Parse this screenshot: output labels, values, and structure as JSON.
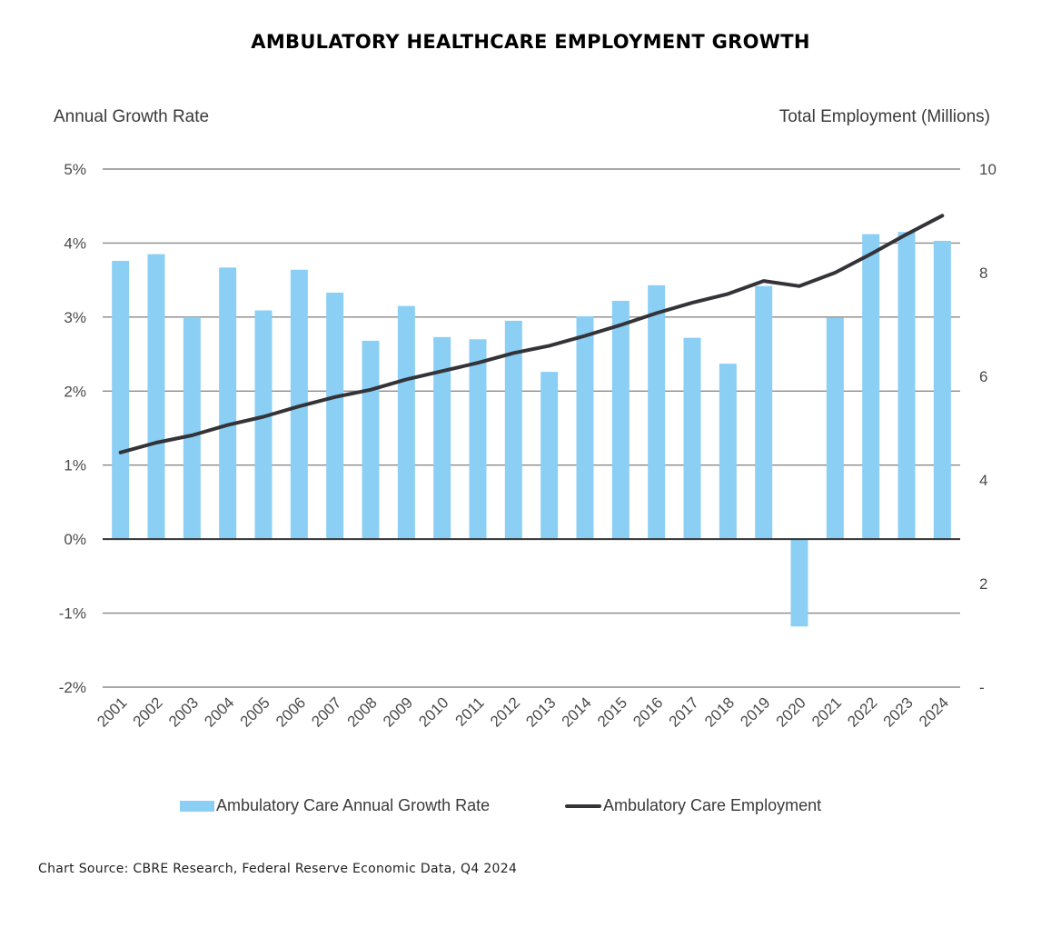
{
  "chart_data": {
    "type": "bar+line",
    "title": "AMBULATORY HEALTHCARE EMPLOYMENT GROWTH",
    "ylabel_left": "Annual Growth Rate",
    "ylabel_right": "Total Employment (Millions)",
    "ylim_left": [
      -2,
      5
    ],
    "ylim_right": [
      0,
      10
    ],
    "left_ticks": [
      "5%",
      "4%",
      "3%",
      "2%",
      "1%",
      "0%",
      "-1%",
      "-2%"
    ],
    "left_tick_values": [
      5,
      4,
      3,
      2,
      1,
      0,
      -1,
      -2
    ],
    "right_ticks": [
      "10",
      "8",
      "6",
      "4",
      "2",
      "-"
    ],
    "right_tick_values": [
      10,
      8,
      6,
      4,
      2,
      0
    ],
    "categories": [
      "2001",
      "2002",
      "2003",
      "2004",
      "2005",
      "2006",
      "2007",
      "2008",
      "2009",
      "2010",
      "2011",
      "2012",
      "2013",
      "2014",
      "2015",
      "2016",
      "2017",
      "2018",
      "2019",
      "2020",
      "2021",
      "2022",
      "2023",
      "2024"
    ],
    "series": [
      {
        "name": "Ambulatory Care Annual Growth Rate",
        "axis": "left",
        "kind": "bar",
        "color": "#8bcff5",
        "values": [
          3.76,
          3.85,
          3.0,
          3.67,
          3.09,
          3.64,
          3.33,
          2.68,
          3.15,
          2.73,
          2.7,
          2.95,
          2.26,
          3.01,
          3.22,
          3.43,
          2.72,
          2.37,
          3.42,
          -1.18,
          2.99,
          4.12,
          4.15,
          4.03
        ]
      },
      {
        "name": "Ambulatory Care Employment",
        "axis": "right",
        "kind": "line",
        "color": "#333338",
        "values": [
          4.53,
          4.72,
          4.86,
          5.06,
          5.22,
          5.42,
          5.6,
          5.74,
          5.94,
          6.1,
          6.26,
          6.45,
          6.59,
          6.78,
          6.99,
          7.22,
          7.42,
          7.59,
          7.84,
          7.74,
          8.0,
          8.36,
          8.74,
          9.1
        ]
      }
    ],
    "grid": true,
    "legend_position": "bottom"
  },
  "source": "Chart Source: CBRE Research, Federal Reserve Economic Data, Q4 2024"
}
